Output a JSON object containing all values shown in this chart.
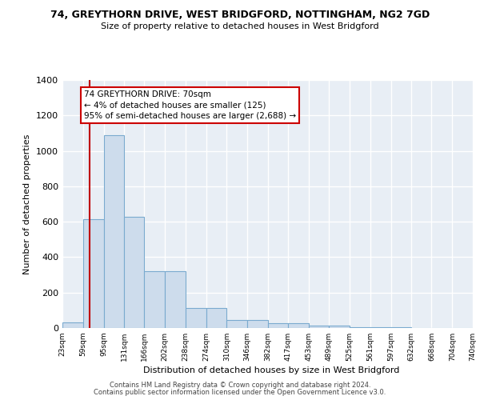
{
  "title": "74, GREYTHORN DRIVE, WEST BRIDGFORD, NOTTINGHAM, NG2 7GD",
  "subtitle": "Size of property relative to detached houses in West Bridgford",
  "xlabel": "Distribution of detached houses by size in West Bridgford",
  "ylabel": "Number of detached properties",
  "bin_edges": [
    23,
    59,
    95,
    131,
    166,
    202,
    238,
    274,
    310,
    346,
    382,
    417,
    453,
    489,
    525,
    561,
    597,
    632,
    668,
    704,
    740
  ],
  "bar_heights": [
    30,
    615,
    1090,
    630,
    320,
    320,
    115,
    115,
    45,
    45,
    25,
    25,
    15,
    15,
    5,
    5,
    5,
    2,
    2,
    2
  ],
  "bar_color": "#cddcec",
  "bar_edgecolor": "#7aaacf",
  "bar_linewidth": 0.8,
  "background_color": "#e8eef5",
  "grid_color": "#ffffff",
  "property_size": 70,
  "red_line_color": "#c00000",
  "annotation_text": "74 GREYTHORN DRIVE: 70sqm\n← 4% of detached houses are smaller (125)\n95% of semi-detached houses are larger (2,688) →",
  "annotation_box_color": "#cc0000",
  "ylim": [
    0,
    1400
  ],
  "yticks": [
    0,
    200,
    400,
    600,
    800,
    1000,
    1200,
    1400
  ],
  "footer_line1": "Contains HM Land Registry data © Crown copyright and database right 2024.",
  "footer_line2": "Contains public sector information licensed under the Open Government Licence v3.0."
}
